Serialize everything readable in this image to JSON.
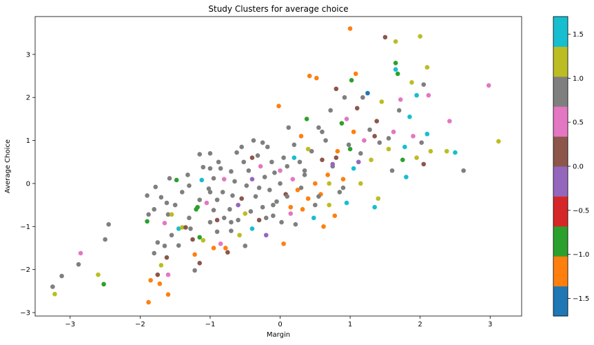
{
  "chart_data": {
    "type": "scatter",
    "title": "Study Clusters for average choice",
    "xlabel": "Margin",
    "ylabel": "Average Choice",
    "xlim": [
      -3.5,
      3.45
    ],
    "ylim": [
      -3.08,
      3.88
    ],
    "x_ticks": [
      -3,
      -2,
      -1,
      0,
      1,
      2,
      3
    ],
    "y_ticks": [
      -3,
      -2,
      -1,
      0,
      1,
      2,
      3
    ],
    "grid": false,
    "legend": "none",
    "colorbar": {
      "position": "right",
      "range": [
        -1.7,
        1.7
      ],
      "ticks": [
        -1.5,
        -1.0,
        -0.5,
        0.0,
        0.5,
        1.0,
        1.5
      ],
      "tick_labels": [
        "−1.5",
        "−1.0",
        "−0.5",
        "0.0",
        "0.5",
        "1.0",
        "1.5"
      ],
      "colors": [
        "#1f77b4",
        "#ff7f0e",
        "#2ca02c",
        "#d62728",
        "#9467bd",
        "#8c564b",
        "#e377c2",
        "#7f7f7f",
        "#bcbd22",
        "#17becf"
      ]
    },
    "points": [
      {
        "x": -3.25,
        "y": -2.4,
        "c": 1.0
      },
      {
        "x": -3.22,
        "y": -2.57,
        "c": 1.3
      },
      {
        "x": -3.12,
        "y": -2.15,
        "c": 1.0
      },
      {
        "x": -2.85,
        "y": -1.62,
        "c": 0.6
      },
      {
        "x": -2.88,
        "y": -1.88,
        "c": 1.0
      },
      {
        "x": -2.6,
        "y": -2.12,
        "c": 1.3
      },
      {
        "x": -2.52,
        "y": -2.34,
        "c": -0.7
      },
      {
        "x": -2.5,
        "y": -1.3,
        "c": 1.0
      },
      {
        "x": -2.45,
        "y": -0.95,
        "c": 1.0
      },
      {
        "x": -1.88,
        "y": -2.76,
        "c": -1.2
      },
      {
        "x": -1.85,
        "y": -2.25,
        "c": -1.2
      },
      {
        "x": -1.75,
        "y": -2.12,
        "c": 0.1
      },
      {
        "x": -1.72,
        "y": -2.33,
        "c": -1.2
      },
      {
        "x": -1.6,
        "y": -2.58,
        "c": -1.2
      },
      {
        "x": -1.6,
        "y": -2.12,
        "c": 0.6
      },
      {
        "x": -1.7,
        "y": -1.9,
        "c": 1.3
      },
      {
        "x": -1.8,
        "y": -1.62,
        "c": 1.0
      },
      {
        "x": -1.75,
        "y": -1.37,
        "c": 1.0
      },
      {
        "x": -1.65,
        "y": -1.45,
        "c": 1.0
      },
      {
        "x": -1.62,
        "y": -1.72,
        "c": 0.1
      },
      {
        "x": -1.55,
        "y": -1.2,
        "c": 1.0
      },
      {
        "x": -1.45,
        "y": -1.44,
        "c": 1.0
      },
      {
        "x": -1.9,
        "y": -0.88,
        "c": -0.7
      },
      {
        "x": -1.88,
        "y": -0.72,
        "c": 1.0
      },
      {
        "x": -1.9,
        "y": -0.28,
        "c": 1.0
      },
      {
        "x": -1.8,
        "y": -0.6,
        "c": 1.0
      },
      {
        "x": -1.78,
        "y": -0.08,
        "c": 1.0
      },
      {
        "x": -1.7,
        "y": -0.32,
        "c": 1.0
      },
      {
        "x": -1.65,
        "y": -0.92,
        "c": 0.6
      },
      {
        "x": -1.6,
        "y": -0.72,
        "c": 1.0
      },
      {
        "x": -1.62,
        "y": -0.45,
        "c": 1.0
      },
      {
        "x": -1.55,
        "y": -0.72,
        "c": 1.3
      },
      {
        "x": -1.58,
        "y": 0.12,
        "c": 1.0
      },
      {
        "x": -1.5,
        "y": -0.5,
        "c": 1.0
      },
      {
        "x": -1.48,
        "y": 0.08,
        "c": -0.7
      },
      {
        "x": -1.45,
        "y": -1.05,
        "c": 1.6
      },
      {
        "x": -1.4,
        "y": -1.02,
        "c": 1.3
      },
      {
        "x": -1.4,
        "y": -0.2,
        "c": 1.0
      },
      {
        "x": -1.3,
        "y": -0.05,
        "c": 1.0
      },
      {
        "x": -1.32,
        "y": 0.2,
        "c": 1.0
      },
      {
        "x": -1.35,
        "y": -1.02,
        "c": 0.1
      },
      {
        "x": -1.28,
        "y": -1.05,
        "c": 1.0
      },
      {
        "x": -1.25,
        "y": -1.3,
        "c": 0.1
      },
      {
        "x": -1.22,
        "y": -2.02,
        "c": 0.8
      },
      {
        "x": -1.22,
        "y": -1.65,
        "c": -1.2
      },
      {
        "x": -1.15,
        "y": -1.85,
        "c": 0.1
      },
      {
        "x": -1.15,
        "y": -1.25,
        "c": -0.7
      },
      {
        "x": -1.1,
        "y": -1.32,
        "c": 1.3
      },
      {
        "x": -1.18,
        "y": -0.55,
        "c": -0.7
      },
      {
        "x": -1.15,
        "y": -0.38,
        "c": 1.0
      },
      {
        "x": -1.12,
        "y": 0.08,
        "c": 1.6
      },
      {
        "x": -1.1,
        "y": 0.38,
        "c": 1.0
      },
      {
        "x": -1.15,
        "y": 0.68,
        "c": 1.0
      },
      {
        "x": -1.05,
        "y": -0.45,
        "c": 0.6
      },
      {
        "x": -1.02,
        "y": -0.12,
        "c": 1.0
      },
      {
        "x": -1.0,
        "y": 0.35,
        "c": 1.0
      },
      {
        "x": -1.0,
        "y": 0.7,
        "c": 1.0
      },
      {
        "x": -0.95,
        "y": -0.62,
        "c": 1.0
      },
      {
        "x": -0.9,
        "y": -0.85,
        "c": 0.1
      },
      {
        "x": -0.9,
        "y": -1.12,
        "c": 0.8
      },
      {
        "x": -0.9,
        "y": -0.38,
        "c": 1.0
      },
      {
        "x": -0.95,
        "y": 0.12,
        "c": 1.0
      },
      {
        "x": -0.88,
        "y": 0.5,
        "c": 1.0
      },
      {
        "x": -0.85,
        "y": -1.4,
        "c": 0.6
      },
      {
        "x": -0.85,
        "y": 0.35,
        "c": 1.0
      },
      {
        "x": -0.8,
        "y": -0.8,
        "c": 1.0
      },
      {
        "x": -0.82,
        "y": -0.2,
        "c": 1.0
      },
      {
        "x": -0.78,
        "y": -1.5,
        "c": -1.2
      },
      {
        "x": -0.75,
        "y": -1.6,
        "c": 0.1
      },
      {
        "x": -0.72,
        "y": -0.6,
        "c": 1.0
      },
      {
        "x": -0.7,
        "y": 0.28,
        "c": 1.0
      },
      {
        "x": -0.7,
        "y": -1.1,
        "c": 0.8
      },
      {
        "x": -0.68,
        "y": -0.28,
        "c": 1.0
      },
      {
        "x": -0.65,
        "y": 0.05,
        "c": 1.0
      },
      {
        "x": -0.62,
        "y": 0.72,
        "c": 1.0
      },
      {
        "x": -0.6,
        "y": -0.85,
        "c": 1.0
      },
      {
        "x": -0.58,
        "y": -1.2,
        "c": 1.3
      },
      {
        "x": -0.55,
        "y": -0.35,
        "c": 0.1
      },
      {
        "x": -0.52,
        "y": 0.5,
        "c": 1.0
      },
      {
        "x": -0.5,
        "y": -1.45,
        "c": 0.8
      },
      {
        "x": -0.48,
        "y": -0.05,
        "c": 1.0
      },
      {
        "x": -0.45,
        "y": 0.3,
        "c": 1.0
      },
      {
        "x": -0.42,
        "y": -0.65,
        "c": 1.0
      },
      {
        "x": -0.4,
        "y": 0.1,
        "c": -0.2
      },
      {
        "x": -0.4,
        "y": -1.05,
        "c": 1.6
      },
      {
        "x": -0.38,
        "y": 1.0,
        "c": 1.0
      },
      {
        "x": -0.35,
        "y": -0.3,
        "c": 1.0
      },
      {
        "x": -0.32,
        "y": 0.65,
        "c": 1.0
      },
      {
        "x": -0.3,
        "y": -0.85,
        "c": 0.1
      },
      {
        "x": -0.28,
        "y": 0.4,
        "c": 0.6
      },
      {
        "x": -0.25,
        "y": -0.55,
        "c": 1.0
      },
      {
        "x": -0.22,
        "y": 0.15,
        "c": 1.0
      },
      {
        "x": -0.2,
        "y": -1.2,
        "c": -0.2
      },
      {
        "x": -0.18,
        "y": 0.85,
        "c": 1.0
      },
      {
        "x": -0.15,
        "y": -0.15,
        "c": 1.0
      },
      {
        "x": -0.12,
        "y": 0.5,
        "c": 1.0
      },
      {
        "x": -0.1,
        "y": -0.75,
        "c": 1.0
      },
      {
        "x": -0.08,
        "y": 0.25,
        "c": 0.8
      },
      {
        "x": -0.05,
        "y": -0.42,
        "c": 1.0
      },
      {
        "x": -0.02,
        "y": 1.8,
        "c": -1.2
      },
      {
        "x": 0.0,
        "y": 0.0,
        "c": 1.0
      },
      {
        "x": 0.02,
        "y": -0.9,
        "c": 1.0
      },
      {
        "x": 0.05,
        "y": 0.6,
        "c": 1.0
      },
      {
        "x": 0.05,
        "y": -1.4,
        "c": -1.2
      },
      {
        "x": 0.08,
        "y": -0.25,
        "c": 0.1
      },
      {
        "x": 0.1,
        "y": 0.4,
        "c": 1.0
      },
      {
        "x": 0.12,
        "y": 1.3,
        "c": 1.0
      },
      {
        "x": 0.15,
        "y": -0.55,
        "c": -1.2
      },
      {
        "x": 0.18,
        "y": 0.1,
        "c": 0.6
      },
      {
        "x": 0.2,
        "y": 0.9,
        "c": 1.0
      },
      {
        "x": 0.22,
        "y": -0.95,
        "c": 1.0
      },
      {
        "x": 0.25,
        "y": -0.15,
        "c": -1.2
      },
      {
        "x": 0.28,
        "y": 0.5,
        "c": 1.0
      },
      {
        "x": 0.3,
        "y": 1.1,
        "c": -1.2
      },
      {
        "x": 0.32,
        "y": -0.6,
        "c": -1.2
      },
      {
        "x": 0.35,
        "y": 0.2,
        "c": 1.0
      },
      {
        "x": 0.38,
        "y": 1.5,
        "c": -0.7
      },
      {
        "x": 0.4,
        "y": -0.35,
        "c": -1.2
      },
      {
        "x": 0.42,
        "y": 2.5,
        "c": -1.2
      },
      {
        "x": 0.45,
        "y": 0.75,
        "c": 1.0
      },
      {
        "x": 0.48,
        "y": -0.8,
        "c": 1.6
      },
      {
        "x": 0.5,
        "y": 0.0,
        "c": -1.2
      },
      {
        "x": 0.52,
        "y": 2.45,
        "c": -1.2
      },
      {
        "x": 0.55,
        "y": 1.3,
        "c": 1.0
      },
      {
        "x": 0.58,
        "y": -0.25,
        "c": -1.2
      },
      {
        "x": 0.6,
        "y": 0.55,
        "c": 0.1
      },
      {
        "x": 0.62,
        "y": -1.0,
        "c": -1.2
      },
      {
        "x": 0.65,
        "y": 1.0,
        "c": 1.0
      },
      {
        "x": 0.68,
        "y": 0.2,
        "c": -1.2
      },
      {
        "x": 0.7,
        "y": -0.5,
        "c": 1.3
      },
      {
        "x": 0.72,
        "y": 1.7,
        "c": 1.0
      },
      {
        "x": 0.75,
        "y": 0.4,
        "c": 1.0
      },
      {
        "x": 0.78,
        "y": -0.75,
        "c": -1.2
      },
      {
        "x": 0.8,
        "y": 2.2,
        "c": 0.1
      },
      {
        "x": 0.82,
        "y": 0.75,
        "c": -1.2
      },
      {
        "x": 0.85,
        "y": -0.2,
        "c": 1.0
      },
      {
        "x": 0.88,
        "y": 1.4,
        "c": -0.7
      },
      {
        "x": 0.9,
        "y": 0.1,
        "c": -1.2
      },
      {
        "x": 0.92,
        "y": 2.0,
        "c": 1.0
      },
      {
        "x": 0.95,
        "y": -0.45,
        "c": 1.6
      },
      {
        "x": 0.98,
        "y": 0.9,
        "c": 1.0
      },
      {
        "x": 1.0,
        "y": 3.6,
        "c": -1.2
      },
      {
        "x": 1.02,
        "y": 2.4,
        "c": -0.7
      },
      {
        "x": 1.05,
        "y": 1.2,
        "c": -1.2
      },
      {
        "x": 1.05,
        "y": 0.35,
        "c": 1.6
      },
      {
        "x": 1.08,
        "y": 2.55,
        "c": -1.2
      },
      {
        "x": 1.1,
        "y": 1.75,
        "c": 0.1
      },
      {
        "x": 1.12,
        "y": 0.5,
        "c": -0.2
      },
      {
        "x": 1.15,
        "y": 0.0,
        "c": 1.3
      },
      {
        "x": 1.18,
        "y": 2.0,
        "c": 1.0
      },
      {
        "x": 1.2,
        "y": 1.0,
        "c": 0.6
      },
      {
        "x": 1.25,
        "y": 2.1,
        "c": -1.6
      },
      {
        "x": 1.28,
        "y": 1.25,
        "c": 1.0
      },
      {
        "x": 1.3,
        "y": 0.55,
        "c": 1.3
      },
      {
        "x": 1.35,
        "y": -0.55,
        "c": 1.6
      },
      {
        "x": 1.38,
        "y": 1.45,
        "c": 0.1
      },
      {
        "x": 1.4,
        "y": -0.35,
        "c": 1.3
      },
      {
        "x": 1.42,
        "y": 0.95,
        "c": 1.0
      },
      {
        "x": 1.45,
        "y": 1.9,
        "c": 1.3
      },
      {
        "x": 1.5,
        "y": 3.4,
        "c": 0.1
      },
      {
        "x": 1.55,
        "y": 1.05,
        "c": 1.0
      },
      {
        "x": 1.6,
        "y": 0.3,
        "c": 1.0
      },
      {
        "x": 1.62,
        "y": 1.2,
        "c": 0.6
      },
      {
        "x": 1.65,
        "y": 3.3,
        "c": 1.3
      },
      {
        "x": 1.65,
        "y": 2.8,
        "c": -0.7
      },
      {
        "x": 1.68,
        "y": 2.55,
        "c": -0.7
      },
      {
        "x": 1.65,
        "y": 2.65,
        "c": 1.6
      },
      {
        "x": 1.7,
        "y": 1.7,
        "c": 1.0
      },
      {
        "x": 1.72,
        "y": 1.95,
        "c": 0.6
      },
      {
        "x": 1.75,
        "y": 0.55,
        "c": -0.7
      },
      {
        "x": 1.78,
        "y": 0.85,
        "c": 1.6
      },
      {
        "x": 1.8,
        "y": 0.15,
        "c": 1.6
      },
      {
        "x": 1.85,
        "y": 1.55,
        "c": 1.6
      },
      {
        "x": 1.88,
        "y": 2.35,
        "c": 1.3
      },
      {
        "x": 1.9,
        "y": 1.1,
        "c": 0.6
      },
      {
        "x": 1.95,
        "y": 2.05,
        "c": 1.6
      },
      {
        "x": 2.0,
        "y": 3.42,
        "c": 1.3
      },
      {
        "x": 2.02,
        "y": 0.95,
        "c": 1.0
      },
      {
        "x": 2.05,
        "y": 0.45,
        "c": 0.1
      },
      {
        "x": 2.05,
        "y": 2.3,
        "c": 1.0
      },
      {
        "x": 2.1,
        "y": 1.15,
        "c": 1.6
      },
      {
        "x": 2.1,
        "y": 2.7,
        "c": 1.3
      },
      {
        "x": 2.12,
        "y": 2.05,
        "c": 0.6
      },
      {
        "x": 2.15,
        "y": 0.75,
        "c": 1.3
      },
      {
        "x": 2.38,
        "y": 0.75,
        "c": 1.3
      },
      {
        "x": 2.42,
        "y": 1.45,
        "c": 0.6
      },
      {
        "x": 2.5,
        "y": 0.72,
        "c": 1.6
      },
      {
        "x": 2.62,
        "y": 0.3,
        "c": 0.8
      },
      {
        "x": 2.98,
        "y": 2.28,
        "c": 0.6
      },
      {
        "x": 3.12,
        "y": 0.98,
        "c": 1.3
      },
      {
        "x": -1.0,
        "y": -0.9,
        "c": 1.0
      },
      {
        "x": -0.95,
        "y": -1.5,
        "c": -1.2
      },
      {
        "x": -0.6,
        "y": -0.5,
        "c": -0.2
      },
      {
        "x": -0.55,
        "y": 0.85,
        "c": 1.0
      },
      {
        "x": -0.3,
        "y": -0.1,
        "c": 0.8
      },
      {
        "x": -0.25,
        "y": 0.95,
        "c": 1.0
      },
      {
        "x": -0.1,
        "y": -0.5,
        "c": 0.8
      },
      {
        "x": 0.0,
        "y": 0.3,
        "c": 0.6
      },
      {
        "x": 0.1,
        "y": -0.3,
        "c": 1.0
      },
      {
        "x": 0.2,
        "y": 0.6,
        "c": 1.6
      },
      {
        "x": 0.3,
        "y": -0.1,
        "c": 0.8
      },
      {
        "x": 0.4,
        "y": 0.8,
        "c": 1.3
      },
      {
        "x": 0.5,
        "y": -0.5,
        "c": 1.0
      },
      {
        "x": 0.6,
        "y": 1.2,
        "c": 1.0
      },
      {
        "x": 0.7,
        "y": 0.0,
        "c": 1.3
      },
      {
        "x": 0.8,
        "y": 0.6,
        "c": 0.1
      },
      {
        "x": 0.9,
        "y": -0.1,
        "c": 1.0
      },
      {
        "x": 1.0,
        "y": 0.8,
        "c": -0.7
      },
      {
        "x": -1.3,
        "y": -0.8,
        "c": 1.0
      },
      {
        "x": -1.2,
        "y": -0.6,
        "c": -0.7
      },
      {
        "x": -1.0,
        "y": -0.2,
        "c": 0.8
      },
      {
        "x": -0.8,
        "y": 0.1,
        "c": 0.6
      },
      {
        "x": -0.7,
        "y": -0.9,
        "c": 1.0
      },
      {
        "x": -0.5,
        "y": -0.7,
        "c": 1.3
      },
      {
        "x": -0.4,
        "y": 0.6,
        "c": 0.1
      },
      {
        "x": -0.2,
        "y": -0.8,
        "c": 1.0
      },
      {
        "x": 0.15,
        "y": -0.7,
        "c": 0.6
      },
      {
        "x": 0.35,
        "y": 0.3,
        "c": 1.0
      },
      {
        "x": 0.55,
        "y": -0.3,
        "c": 1.0
      },
      {
        "x": 0.75,
        "y": 0.45,
        "c": -0.2
      },
      {
        "x": 0.95,
        "y": 1.5,
        "c": 0.6
      },
      {
        "x": 1.15,
        "y": 0.7,
        "c": 1.0
      },
      {
        "x": 1.35,
        "y": 1.1,
        "c": 0.1
      },
      {
        "x": 1.55,
        "y": 0.8,
        "c": 1.3
      },
      {
        "x": 1.95,
        "y": 0.6,
        "c": 1.3
      }
    ]
  }
}
